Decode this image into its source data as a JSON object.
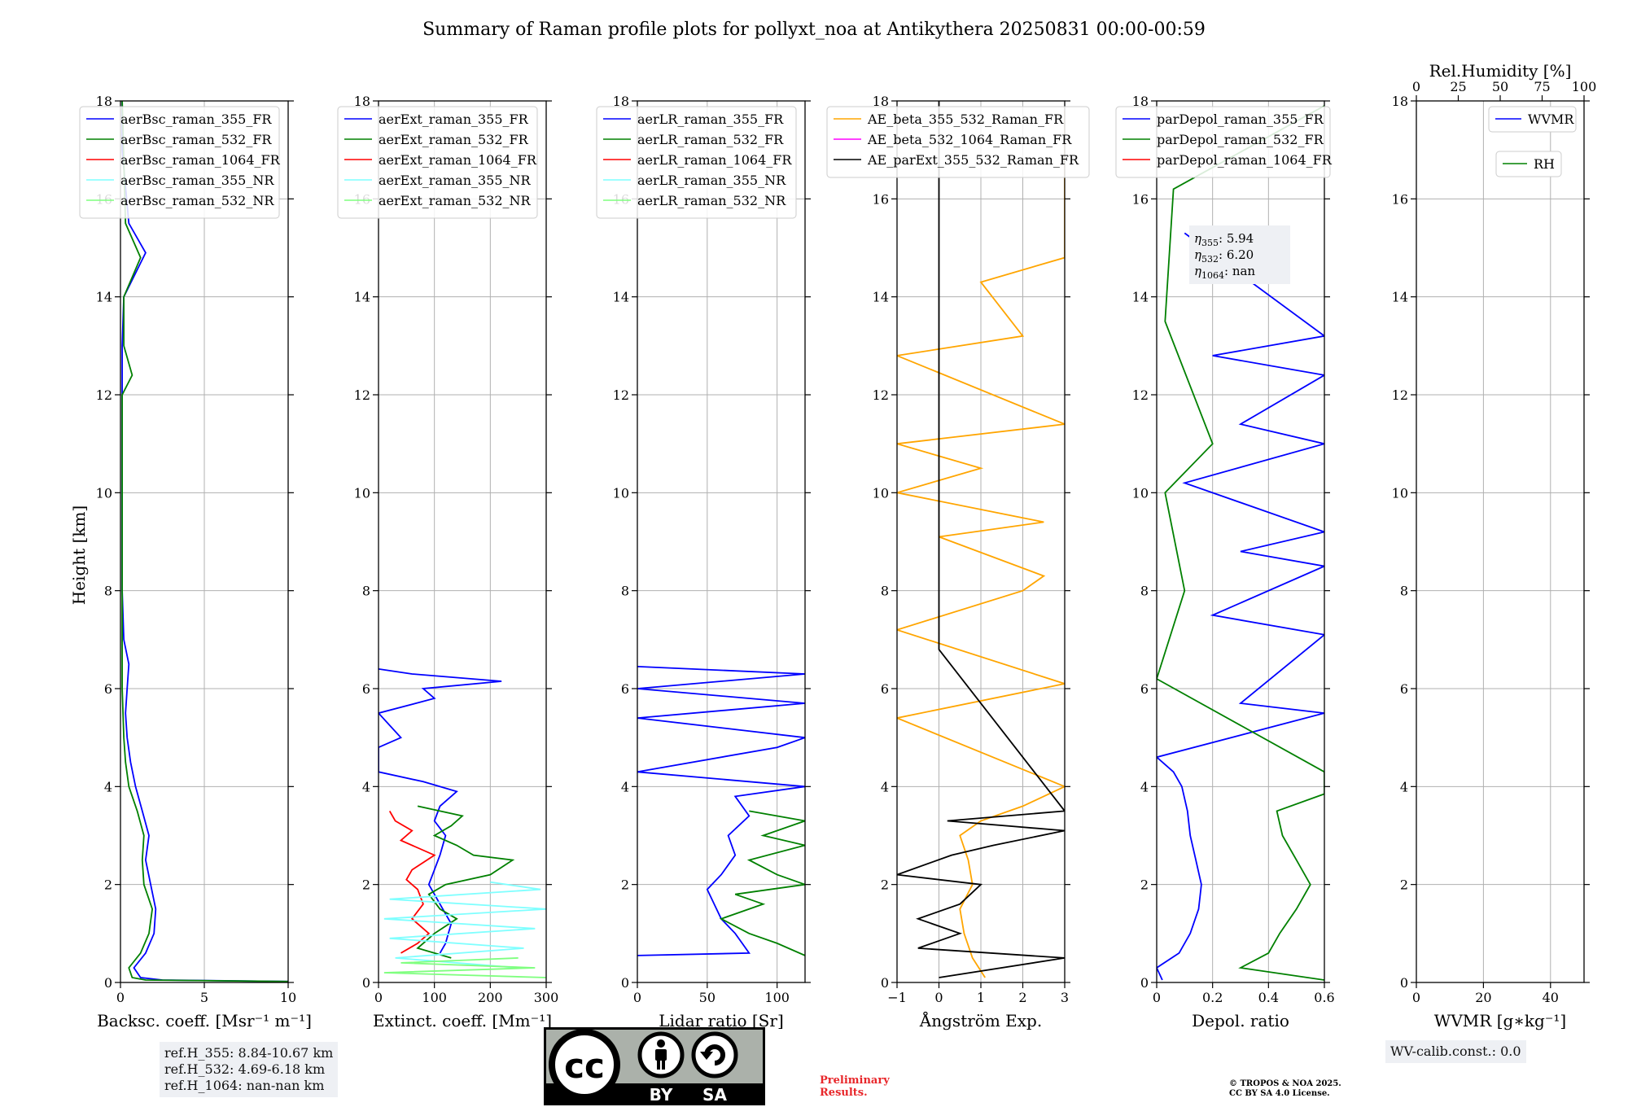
{
  "title": "Summary of Raman profile plots for pollyxt_noa at Antikythera 20250831 00:00-00:59",
  "shared_ylabel": "Height [km]",
  "chart_data": [
    {
      "type": "line",
      "xlabel": "Backsc. coeff. [Msr⁻¹ m⁻¹]",
      "xlim": [
        0,
        10
      ],
      "ylim": [
        0,
        18
      ],
      "xticks": [
        0,
        5,
        10
      ],
      "yticks": [
        0,
        2,
        4,
        6,
        8,
        10,
        12,
        14,
        16,
        18
      ],
      "legend": [
        "aerBsc_raman_355_FR",
        "aerBsc_raman_532_FR",
        "aerBsc_raman_1064_FR",
        "aerBsc_raman_355_NR",
        "aerBsc_raman_532_NR"
      ],
      "legend_position": "top-left",
      "series": [
        {
          "name": "aerBsc_raman_355_FR",
          "color": "#0000ff",
          "y": [
            0.02,
            0.05,
            0.1,
            0.3,
            0.6,
            1,
            1.5,
            2,
            2.5,
            3,
            3.5,
            4,
            4.5,
            5,
            5.5,
            6,
            6.5,
            7,
            8,
            10,
            12,
            13,
            14,
            14.9,
            15.5,
            17,
            18
          ],
          "x": [
            10,
            2.5,
            1.2,
            0.8,
            1.5,
            2.0,
            2.1,
            1.8,
            1.5,
            1.7,
            1.3,
            0.9,
            0.6,
            0.4,
            0.3,
            0.4,
            0.5,
            0.2,
            0.1,
            0.1,
            0.1,
            0.1,
            0.2,
            1.5,
            0.5,
            0.1,
            0.1
          ]
        },
        {
          "name": "aerBsc_raman_532_FR",
          "color": "#008000",
          "y": [
            0.02,
            0.05,
            0.1,
            0.3,
            0.6,
            1,
            1.5,
            2,
            2.5,
            3,
            3.5,
            4,
            4.5,
            5,
            6,
            8,
            10,
            12,
            12.4,
            13,
            14,
            14.8,
            15.5,
            18
          ],
          "x": [
            10,
            1.5,
            0.7,
            0.5,
            1.2,
            1.7,
            1.9,
            1.4,
            1.3,
            1.4,
            1.0,
            0.5,
            0.3,
            0.2,
            0.1,
            0.1,
            0.1,
            0.1,
            0.7,
            0.2,
            0.2,
            1.2,
            0.3,
            0.1
          ]
        },
        {
          "name": "aerBsc_raman_1064_FR",
          "color": "#ff0000",
          "y": [],
          "x": []
        },
        {
          "name": "aerBsc_raman_355_NR",
          "color": "#7fffff",
          "y": [],
          "x": []
        },
        {
          "name": "aerBsc_raman_532_NR",
          "color": "#7fff7f",
          "y": [],
          "x": []
        }
      ]
    },
    {
      "type": "line",
      "xlabel": "Extinct. coeff. [Mm⁻¹]",
      "xlim": [
        0,
        300
      ],
      "ylim": [
        0,
        18
      ],
      "xticks": [
        0,
        100,
        200,
        300
      ],
      "yticks": [
        0,
        2,
        4,
        6,
        8,
        10,
        12,
        14,
        16,
        18
      ],
      "legend": [
        "aerExt_raman_355_FR",
        "aerExt_raman_532_FR",
        "aerExt_raman_1064_FR",
        "aerExt_raman_355_NR",
        "aerExt_raman_532_NR"
      ],
      "legend_position": "top-left",
      "series": [
        {
          "name": "aerExt_raman_355_FR",
          "color": "#0000ff",
          "y": [
            0.6,
            0.8,
            1,
            1.2,
            1.4,
            1.6,
            1.8,
            2,
            2.3,
            2.6,
            3,
            3.3,
            3.6,
            3.9,
            4.1,
            4.3,
            4.8,
            5.0,
            5.5,
            5.8,
            6.0,
            6.15,
            6.3,
            6.4
          ],
          "x": [
            110,
            120,
            125,
            130,
            120,
            110,
            100,
            90,
            100,
            110,
            120,
            100,
            110,
            140,
            80,
            0,
            0,
            40,
            0,
            100,
            80,
            220,
            60,
            0
          ]
        },
        {
          "name": "aerExt_raman_532_FR",
          "color": "#008000",
          "y": [
            0.5,
            0.7,
            1,
            1.3,
            1.5,
            1.8,
            2,
            2.2,
            2.5,
            2.6,
            2.8,
            3,
            3.2,
            3.4,
            3.6
          ],
          "x": [
            130,
            70,
            100,
            140,
            110,
            90,
            120,
            200,
            240,
            170,
            140,
            100,
            130,
            150,
            70
          ]
        },
        {
          "name": "aerExt_raman_1064_FR",
          "color": "#ff0000",
          "y": [
            0.6,
            0.8,
            1,
            1.3,
            1.6,
            1.9,
            2.1,
            2.3,
            2.6,
            2.9,
            3.1,
            3.3,
            3.5
          ],
          "x": [
            40,
            70,
            90,
            60,
            80,
            70,
            50,
            60,
            100,
            40,
            60,
            30,
            20
          ]
        },
        {
          "name": "aerExt_raman_355_NR",
          "color": "#7fffff",
          "y": [
            0.3,
            0.5,
            0.7,
            0.9,
            1.1,
            1.3,
            1.5,
            1.7,
            1.9,
            2.05
          ],
          "x": [
            250,
            30,
            260,
            20,
            280,
            10,
            300,
            20,
            290,
            200
          ]
        },
        {
          "name": "aerExt_raman_532_NR",
          "color": "#7fff7f",
          "y": [
            0.1,
            0.2,
            0.3,
            0.4,
            0.5
          ],
          "x": [
            300,
            10,
            280,
            40,
            250
          ]
        }
      ]
    },
    {
      "type": "line",
      "xlabel": "Lidar ratio [Sr]",
      "xlim": [
        0,
        120
      ],
      "ylim": [
        0,
        18
      ],
      "xticks": [
        0,
        50,
        100
      ],
      "yticks": [
        0,
        2,
        4,
        6,
        8,
        10,
        12,
        14,
        16,
        18
      ],
      "legend": [
        "aerLR_raman_355_FR",
        "aerLR_raman_532_FR",
        "aerLR_raman_1064_FR",
        "aerLR_raman_355_NR",
        "aerLR_raman_532_NR"
      ],
      "legend_position": "top-left",
      "series": [
        {
          "name": "aerLR_raman_355_FR",
          "color": "#0000ff",
          "y": [
            0.55,
            0.6,
            0.8,
            1,
            1.3,
            1.6,
            1.9,
            2.2,
            2.6,
            3,
            3.4,
            3.8,
            4.0,
            4.3,
            4.8,
            5.0,
            5.4,
            5.7,
            6.0,
            6.3,
            6.45
          ],
          "x": [
            0,
            80,
            75,
            70,
            60,
            55,
            50,
            60,
            70,
            65,
            80,
            70,
            120,
            0,
            100,
            120,
            0,
            120,
            0,
            120,
            0
          ]
        },
        {
          "name": "aerLR_raman_532_FR",
          "color": "#008000",
          "y": [
            0.55,
            0.8,
            1,
            1.3,
            1.6,
            1.8,
            2.0,
            2.2,
            2.5,
            2.8,
            3.0,
            3.3,
            3.5
          ],
          "x": [
            120,
            100,
            80,
            60,
            90,
            70,
            120,
            100,
            80,
            120,
            90,
            120,
            80
          ]
        },
        {
          "name": "aerLR_raman_1064_FR",
          "color": "#ff0000",
          "y": [],
          "x": []
        },
        {
          "name": "aerLR_raman_355_NR",
          "color": "#7fffff",
          "y": [],
          "x": []
        },
        {
          "name": "aerLR_raman_532_NR",
          "color": "#7fff7f",
          "y": [],
          "x": []
        }
      ]
    },
    {
      "type": "line",
      "xlabel": "Ångström Exp.",
      "xlim": [
        -1,
        3
      ],
      "ylim": [
        0,
        18
      ],
      "xticks": [
        -1,
        0,
        1,
        2,
        3
      ],
      "yticks": [
        0,
        2,
        4,
        6,
        8,
        10,
        12,
        14,
        16,
        18
      ],
      "legend": [
        "AE_beta_355_532_Raman_FR",
        "AE_beta_532_1064_Raman_FR",
        "AE_parExt_355_532_Raman_FR"
      ],
      "legend_position": "top-left",
      "series": [
        {
          "name": "AE_beta_355_532_Raman_FR",
          "color": "#ffa500",
          "y": [
            0.1,
            0.5,
            1,
            1.5,
            2,
            2.5,
            3,
            3.3,
            3.6,
            4.0,
            5.4,
            6.1,
            7.2,
            8.0,
            8.3,
            9.1,
            9.4,
            10,
            10.5,
            11,
            11.4,
            12.8,
            13.2,
            14.3,
            14.8,
            15.4,
            17.8
          ],
          "x": [
            1.1,
            0.8,
            0.6,
            0.5,
            0.8,
            0.7,
            0.5,
            1,
            2,
            3,
            -1,
            3,
            -1,
            2,
            2.5,
            0,
            2.5,
            -1,
            1,
            -1,
            3,
            -1,
            2,
            1,
            3,
            3,
            3
          ]
        },
        {
          "name": "AE_beta_532_1064_Raman_FR",
          "color": "#ff00ff",
          "y": [],
          "x": []
        },
        {
          "name": "AE_parExt_355_532_Raman_FR",
          "color": "#000000",
          "y": [
            0.1,
            0.5,
            0.7,
            1.0,
            1.3,
            1.6,
            2.0,
            2.2,
            2.6,
            2.8,
            3.1,
            3.3,
            3.5,
            6.8,
            18
          ],
          "x": [
            0,
            3,
            -0.5,
            0.5,
            -0.5,
            0.5,
            1,
            -1,
            0.3,
            1.3,
            3,
            0.2,
            3,
            0,
            0
          ]
        }
      ]
    },
    {
      "type": "line",
      "xlabel": "Depol. ratio",
      "xlim": [
        0,
        0.6
      ],
      "ylim": [
        0,
        18
      ],
      "xticks": [
        0.0,
        0.2,
        0.4,
        0.6
      ],
      "yticks": [
        0,
        2,
        4,
        6,
        8,
        10,
        12,
        14,
        16,
        18
      ],
      "legend": [
        "parDepol_raman_355_FR",
        "parDepol_raman_532_FR",
        "parDepol_raman_1064_FR"
      ],
      "legend_position": "top-left",
      "annotation": {
        "eta355": "5.94",
        "eta532": "6.20",
        "eta1064": "nan"
      },
      "series": [
        {
          "name": "parDepol_raman_355_FR",
          "color": "#0000ff",
          "y": [
            0.05,
            0.3,
            0.6,
            1,
            1.5,
            2,
            2.5,
            3,
            3.5,
            4,
            4.3,
            4.6,
            5.5,
            5.7,
            7.1,
            7.5,
            8.5,
            8.8,
            9.2,
            10.2,
            11,
            11.4,
            12.4,
            12.8,
            13.2,
            15.3
          ],
          "x": [
            0.02,
            0.0,
            0.08,
            0.12,
            0.15,
            0.16,
            0.14,
            0.12,
            0.11,
            0.09,
            0.06,
            0.0,
            0.6,
            0.3,
            0.6,
            0.2,
            0.6,
            0.3,
            0.6,
            0.1,
            0.6,
            0.3,
            0.6,
            0.2,
            0.6,
            0.1
          ]
        },
        {
          "name": "parDepol_raman_532_FR",
          "color": "#008000",
          "y": [
            0.05,
            0.3,
            0.6,
            1,
            1.5,
            2,
            2.5,
            3,
            3.5,
            3.85,
            4.3,
            6.2,
            8,
            10,
            11,
            13.5,
            16.2,
            17.9
          ],
          "x": [
            0.6,
            0.3,
            0.4,
            0.44,
            0.5,
            0.55,
            0.5,
            0.45,
            0.43,
            0.6,
            0.6,
            0.0,
            0.1,
            0.03,
            0.2,
            0.03,
            0.06,
            0.6
          ]
        },
        {
          "name": "parDepol_raman_1064_FR",
          "color": "#ff0000",
          "y": [],
          "x": []
        }
      ]
    },
    {
      "type": "line",
      "xlabel": "WVMR [g∗kg⁻¹]",
      "xlim": [
        0,
        50
      ],
      "ylim": [
        0,
        18
      ],
      "xticks": [
        0,
        20,
        40
      ],
      "yticks": [
        0,
        2,
        4,
        6,
        8,
        10,
        12,
        14,
        16,
        18
      ],
      "top_axis": {
        "label": "Rel.Humidity [%]",
        "ticks": [
          0,
          25,
          50,
          75,
          100
        ]
      },
      "legend": [
        "WVMR",
        "RH"
      ],
      "legend_position": "top-right",
      "series": [
        {
          "name": "WVMR",
          "color": "#0000ff",
          "y": [],
          "x": []
        },
        {
          "name": "RH",
          "color": "#008000",
          "y": [],
          "x": []
        }
      ]
    }
  ],
  "info": {
    "ref_355": "ref.H_355: 8.84-10.67 km",
    "ref_532": "ref.H_532: 4.69-6.18 km",
    "ref_1064": "ref.H_1064: nan-nan km",
    "wv_calib": "WV-calib.const.: 0.0",
    "prelim_1": "Preliminary",
    "prelim_2": "Results.",
    "copyright_1": "© TROPOS & NOA 2025.",
    "copyright_2": "CC BY SA 4.0 License.",
    "license_by": "BY",
    "license_sa": "SA",
    "license_cc": "cc"
  }
}
